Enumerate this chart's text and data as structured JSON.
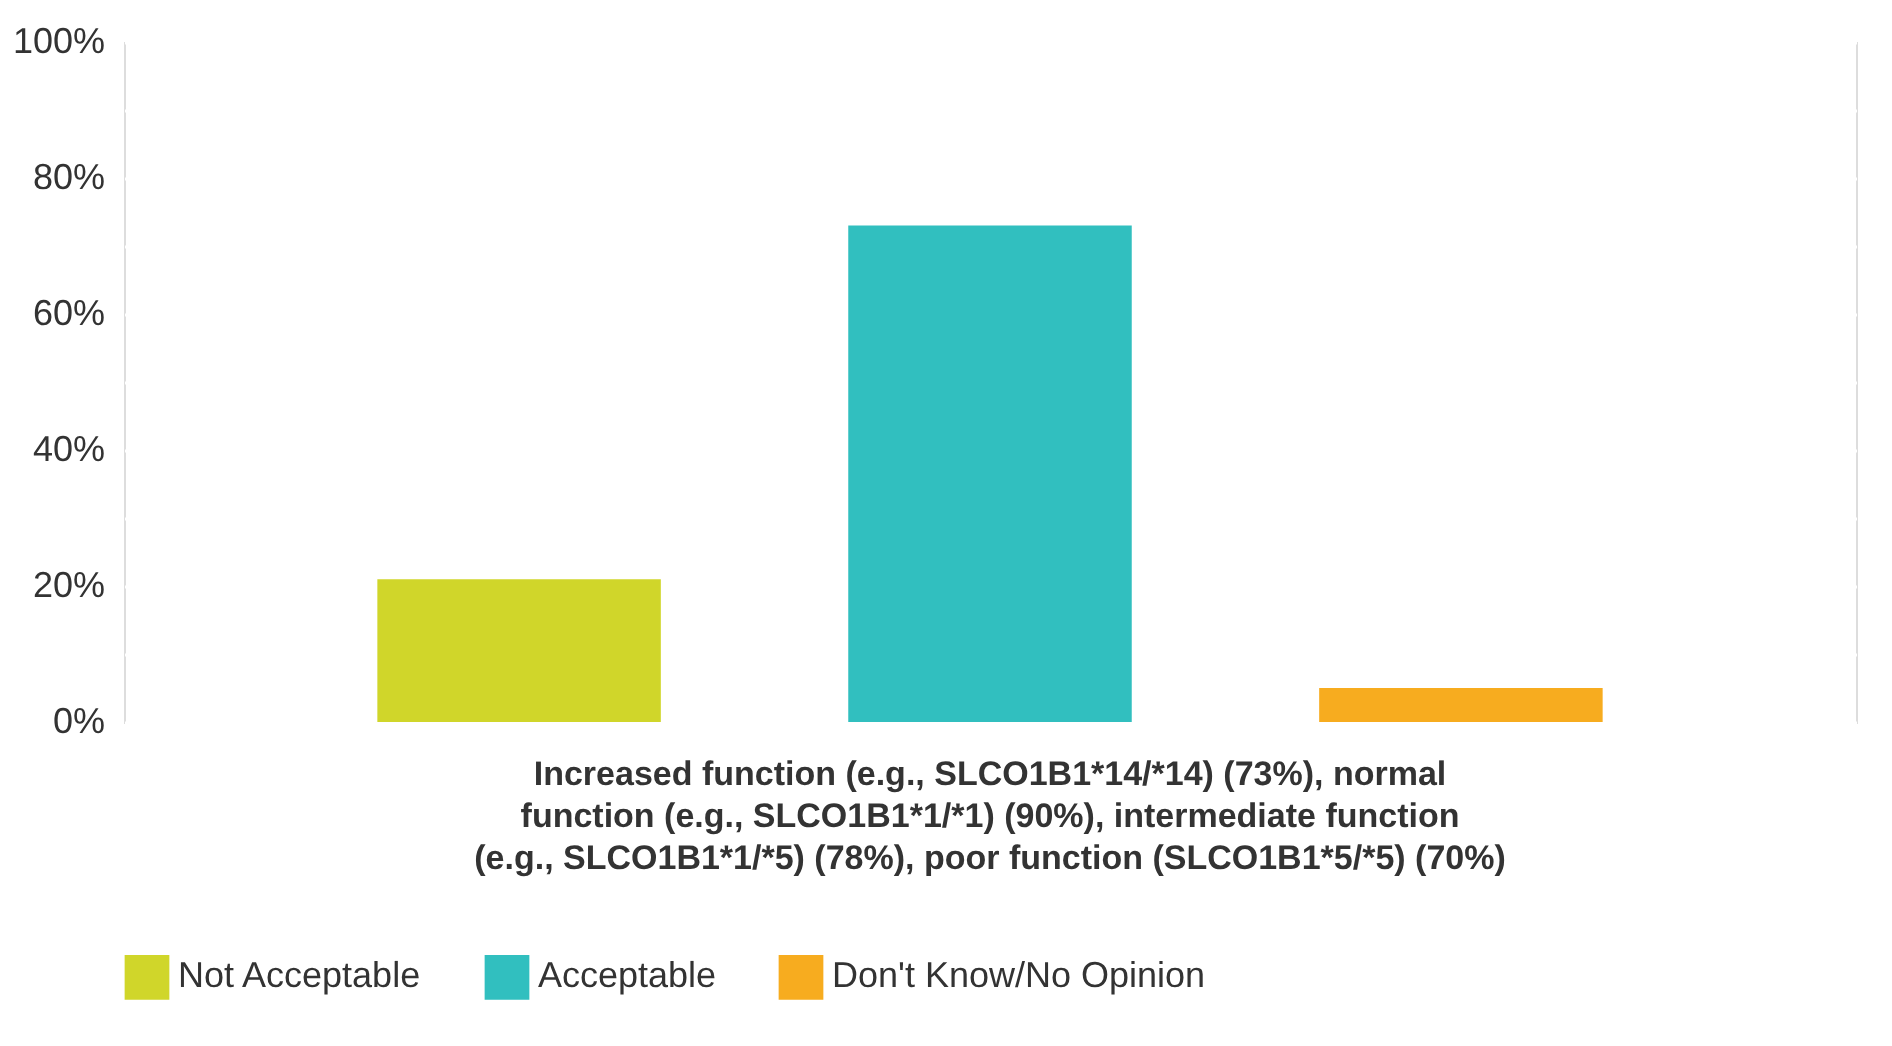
{
  "chart_data": {
    "type": "bar",
    "categories": [
      "Increased function (e.g., SLCO1B1*14/*14) (73%), normal function (e.g., SLCO1B1*1/*1) (90%), intermediate function (e.g., SLCO1B1*1/*5) (78%), poor function (SLCO1B1*5/*5) (70%)"
    ],
    "series": [
      {
        "name": "Not Acceptable",
        "color": "#d0d62a",
        "values": [
          21
        ]
      },
      {
        "name": "Acceptable",
        "color": "#31bfbf",
        "values": [
          73
        ]
      },
      {
        "name": "Don't Know/No Opinion",
        "color": "#f7ac1f",
        "values": [
          5
        ]
      }
    ],
    "ylim": [
      0,
      100
    ],
    "yticks": [
      {
        "value": 0,
        "label": "0%"
      },
      {
        "value": 10,
        "label": null
      },
      {
        "value": 20,
        "label": "20%"
      },
      {
        "value": 30,
        "label": null
      },
      {
        "value": 40,
        "label": "40%"
      },
      {
        "value": 50,
        "label": null
      },
      {
        "value": 60,
        "label": "60%"
      },
      {
        "value": 70,
        "label": null
      },
      {
        "value": 80,
        "label": "80%"
      },
      {
        "value": 90,
        "label": null
      },
      {
        "value": 100,
        "label": "100%"
      }
    ],
    "grid": "y",
    "legend": "bottom left"
  }
}
